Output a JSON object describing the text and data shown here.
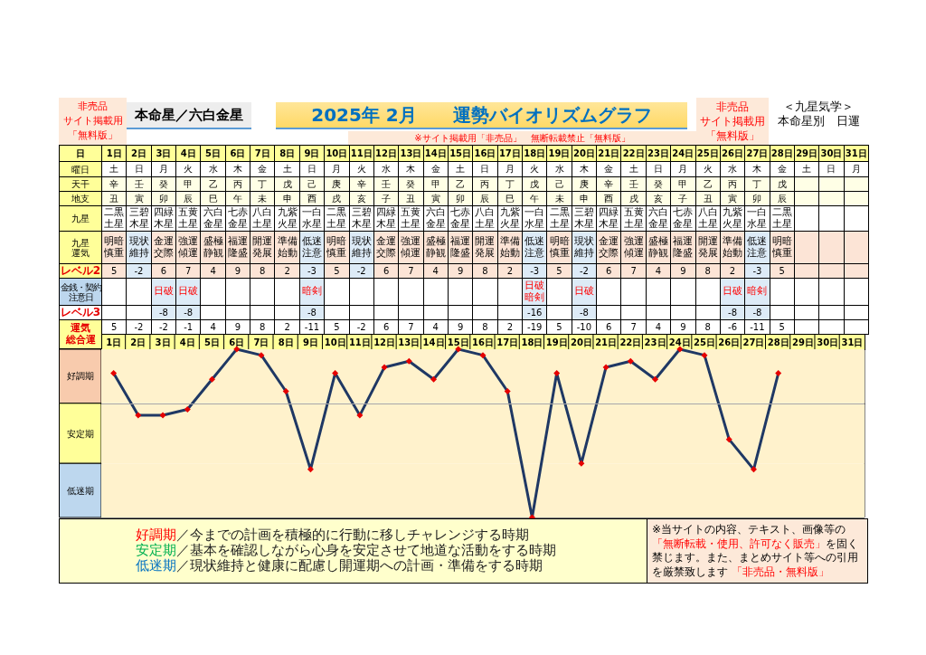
{
  "chart_data": {
    "type": "line",
    "title": "2025年 2月　　運勢バイオリズムグラフ",
    "subtitle": "本命星／六白金星",
    "xlabel": "日",
    "ylabel": "運気総合運",
    "categories": [
      "1日",
      "2日",
      "3日",
      "4日",
      "5日",
      "6日",
      "7日",
      "8日",
      "9日",
      "10日",
      "11日",
      "12日",
      "13日",
      "14日",
      "15日",
      "16日",
      "17日",
      "18日",
      "19日",
      "20日",
      "21日",
      "22日",
      "23日",
      "24日",
      "25日",
      "26日",
      "27日",
      "28日",
      "29日",
      "30日",
      "31日"
    ],
    "values": [
      5,
      -2,
      -2,
      -1,
      4,
      9,
      8,
      2,
      -11,
      5,
      -2,
      6,
      7,
      4,
      9,
      8,
      2,
      -19,
      5,
      -10,
      6,
      7,
      4,
      9,
      8,
      -6,
      -11,
      5,
      null,
      null,
      null
    ],
    "color": "#1f3864",
    "colors": [
      "#e60000",
      "#e60000",
      "#e60000",
      "#e60000",
      "#e60000",
      "#e60000",
      "#e60000",
      "#e60000",
      "#e60000",
      "#e60000",
      "#e60000",
      "#e60000",
      "#e60000",
      "#e60000",
      "#e60000",
      "#e60000",
      "#e60000",
      "#e60000",
      "#e60000",
      "#e60000",
      "#e60000",
      "#e60000",
      "#e60000",
      "#e60000",
      "#e60000",
      "#e60000",
      "#e60000",
      "#e60000",
      null,
      null,
      null
    ],
    "ylim": [
      -19,
      9
    ],
    "tick_labels": "x",
    "marker": "diamond",
    "line_style": "solid",
    "data_labels": true,
    "ref_lines": [
      {
        "axis": "y",
        "value": 0,
        "color": "#a6a6a6"
      }
    ],
    "bands": [
      {
        "axis": "y",
        "from": 0,
        "to": 9,
        "label": "好調期",
        "color": "#fff2cc"
      },
      {
        "axis": "y",
        "from": -10,
        "to": 0,
        "label": "安定期",
        "color": "#fff2cc"
      },
      {
        "axis": "y",
        "from": -19,
        "to": -10,
        "label": "低迷期",
        "color": "#fff2cc"
      }
    ],
    "y_categories": [
      "曜日",
      "天干",
      "地支",
      "九星",
      "九星運気",
      "レベル2",
      "金銭・契約注意日",
      "レベル3"
    ],
    "cell_labels": [
      [
        "土",
        "日",
        "月",
        "火",
        "水",
        "木",
        "金",
        "土",
        "日",
        "月",
        "火",
        "水",
        "木",
        "金",
        "土",
        "日",
        "月",
        "火",
        "水",
        "木",
        "金",
        "土",
        "日",
        "月",
        "火",
        "水",
        "木",
        "金",
        "土",
        "日",
        "月"
      ],
      [
        "辛",
        "壬",
        "癸",
        "甲",
        "乙",
        "丙",
        "丁",
        "戊",
        "己",
        "庚",
        "辛",
        "壬",
        "癸",
        "甲",
        "乙",
        "丙",
        "丁",
        "戊",
        "己",
        "庚",
        "辛",
        "壬",
        "癸",
        "甲",
        "乙",
        "丙",
        "丁",
        "戊",
        null,
        null,
        null
      ],
      [
        "丑",
        "寅",
        "卯",
        "辰",
        "巳",
        "午",
        "未",
        "申",
        "酉",
        "戌",
        "亥",
        "子",
        "丑",
        "寅",
        "卯",
        "辰",
        "巳",
        "午",
        "未",
        "申",
        "酉",
        "戌",
        "亥",
        "子",
        "丑",
        "寅",
        "卯",
        "辰",
        null,
        null,
        null
      ],
      [
        "二黒土星",
        "三碧木星",
        "四緑木星",
        "五黄土星",
        "六白金星",
        "七赤金星",
        "八白土星",
        "九紫火星",
        "一白水星",
        "二黒土星",
        "三碧木星",
        "四緑木星",
        "五黄土星",
        "六白金星",
        "七赤金星",
        "八白土星",
        "九紫火星",
        "一白水星",
        "二黒土星",
        "三碧木星",
        "四緑木星",
        "五黄土星",
        "六白金星",
        "七赤金星",
        "八白土星",
        "九紫火星",
        "一白水星",
        "二黒土星",
        null,
        null,
        null
      ],
      [
        "明暗慎重",
        "現状維持",
        "金運交際",
        "強運傾運",
        "盛極静観",
        "福運隆盛",
        "開運発展",
        "準備始動",
        "低迷注意",
        "明暗慎重",
        "現状維持",
        "金運交際",
        "強運傾運",
        "盛極静観",
        "福運隆盛",
        "開運発展",
        "準備始動",
        "低迷注意",
        "明暗慎重",
        "現状維持",
        "金運交際",
        "強運傾運",
        "盛極静観",
        "福運隆盛",
        "開運発展",
        "準備始動",
        "低迷注意",
        "明暗慎重",
        null,
        null,
        null
      ],
      [
        "5",
        "-2",
        "6",
        "7",
        "4",
        "9",
        "8",
        "2",
        "-3",
        "5",
        "-2",
        "6",
        "7",
        "4",
        "9",
        "8",
        "2",
        "-3",
        "5",
        "-2",
        "6",
        "7",
        "4",
        "9",
        "8",
        "2",
        "-3",
        "5",
        null,
        null,
        null
      ],
      [
        null,
        null,
        "日破",
        "日破",
        null,
        null,
        null,
        null,
        "暗剣",
        null,
        null,
        null,
        null,
        null,
        null,
        null,
        null,
        "日破暗剣",
        null,
        "日破",
        null,
        null,
        null,
        null,
        null,
        "日破",
        "暗剣",
        null,
        null,
        null,
        null
      ],
      [
        null,
        null,
        "-8",
        "-8",
        null,
        null,
        null,
        null,
        "-8",
        null,
        null,
        null,
        null,
        null,
        null,
        null,
        null,
        "-16",
        null,
        "-8",
        null,
        null,
        null,
        null,
        null,
        "-8",
        "-8",
        null,
        null,
        null,
        null
      ]
    ],
    "annotations": [
      "非売品",
      "サイト掲載用",
      "「無料版」",
      "※サイト掲載用「非売品」　無断転載禁止「無料版」",
      "非売品",
      "サイト掲載用",
      "「無料版」",
      "＜九星気学＞",
      "本命星別　日運",
      "好調期／今までの計画を積極的に行動に移しチャレンジする時期",
      "安定期／基本を確認しながら心身を安定させて地道な活動をする時期",
      "低迷期／現状維持と健康に配慮し開運期への計画・準備をする時期",
      "※当サイトの内容、テキスト、画像等の「無断転載・使用、許可なく販売」を固く禁じます。また、まとめサイト等への引用を厳禁致します 「非売品・無料版」"
    ]
  }
}
